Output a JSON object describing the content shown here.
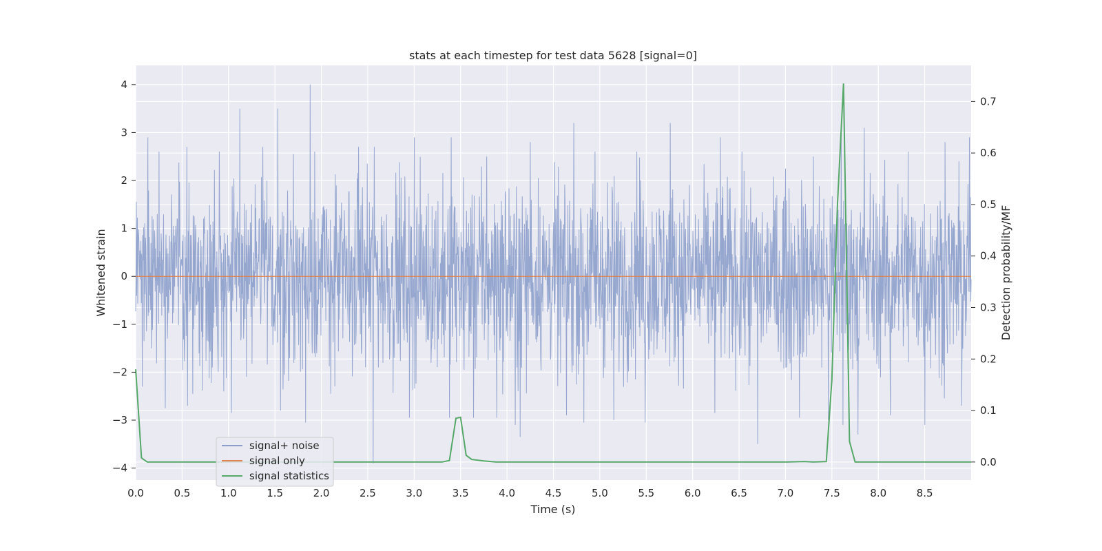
{
  "chart_data": {
    "type": "line",
    "title": "stats at each timestep for test data 5628 [signal=0]",
    "xlabel": "Time (s)",
    "ylabel": "Whitened strain",
    "ylabel_right": "Detection probability/MF",
    "xlim": [
      0,
      9.0
    ],
    "ylim": [
      -4.25,
      4.4
    ],
    "ylim_right": [
      -0.035,
      0.77
    ],
    "x_ticks": [
      "0.0",
      "0.5",
      "1.0",
      "1.5",
      "2.0",
      "2.5",
      "3.0",
      "3.5",
      "4.0",
      "4.5",
      "5.0",
      "5.5",
      "6.0",
      "6.5",
      "7.0",
      "7.5",
      "8.0",
      "8.5"
    ],
    "y_ticks": [
      "−4",
      "−3",
      "−2",
      "−1",
      "0",
      "1",
      "2",
      "3",
      "4"
    ],
    "y_ticks_right": [
      "0.0",
      "0.1",
      "0.2",
      "0.3",
      "0.4",
      "0.5",
      "0.6",
      "0.7"
    ],
    "grid": true,
    "legend_position": "lower-left",
    "colors": {
      "noise": "#8c9fcb",
      "signal": "#dd8452",
      "stats": "#55a868",
      "background": "#eaeaf2",
      "grid": "#ffffff"
    },
    "series": [
      {
        "name": "signal+ noise",
        "kind": "noise",
        "typical_range": [
          -1.6,
          1.5
        ],
        "peaks": [
          [
            0.07,
            2.55
          ],
          [
            0.13,
            2.9
          ],
          [
            0.25,
            2.6
          ],
          [
            0.55,
            2.7
          ],
          [
            0.9,
            2.6
          ],
          [
            1.12,
            3.5
          ],
          [
            1.37,
            2.7
          ],
          [
            1.53,
            3.5
          ],
          [
            1.7,
            2.55
          ],
          [
            1.83,
            2.9
          ],
          [
            1.88,
            4.0
          ],
          [
            1.93,
            2.6
          ],
          [
            2.4,
            2.7
          ],
          [
            2.57,
            2.7
          ],
          [
            3.0,
            2.9
          ],
          [
            3.4,
            2.9
          ],
          [
            3.78,
            2.5
          ],
          [
            4.25,
            2.8
          ],
          [
            4.72,
            3.2
          ],
          [
            4.95,
            2.6
          ],
          [
            5.4,
            2.6
          ],
          [
            5.76,
            3.2
          ],
          [
            6.3,
            2.9
          ],
          [
            6.53,
            2.6
          ],
          [
            7.3,
            2.5
          ],
          [
            7.6,
            3.2
          ],
          [
            7.62,
            3.0
          ],
          [
            7.85,
            3.1
          ],
          [
            8.32,
            2.6
          ],
          [
            8.72,
            2.8
          ],
          [
            8.98,
            2.9
          ]
        ],
        "troughs": [
          [
            0.07,
            -2.3
          ],
          [
            0.32,
            -2.75
          ],
          [
            0.56,
            -2.7
          ],
          [
            1.03,
            -2.85
          ],
          [
            1.56,
            -2.8
          ],
          [
            1.83,
            -3.05
          ],
          [
            2.56,
            -3.9
          ],
          [
            2.95,
            -2.95
          ],
          [
            3.38,
            -2.95
          ],
          [
            3.64,
            -2.95
          ],
          [
            3.89,
            -2.95
          ],
          [
            4.09,
            -3.1
          ],
          [
            4.14,
            -3.35
          ],
          [
            4.64,
            -2.9
          ],
          [
            4.83,
            -3.05
          ],
          [
            5.15,
            -3.0
          ],
          [
            5.49,
            -3.05
          ],
          [
            6.24,
            -2.85
          ],
          [
            6.7,
            -3.5
          ],
          [
            7.15,
            -2.95
          ],
          [
            7.46,
            -3.0
          ],
          [
            7.62,
            -3.1
          ],
          [
            7.78,
            -3.3
          ],
          [
            8.13,
            -2.9
          ],
          [
            8.5,
            -3.1
          ],
          [
            8.9,
            -2.7
          ]
        ]
      },
      {
        "name": "signal only",
        "kind": "signal",
        "x": [
          0,
          9.0
        ],
        "y": [
          0,
          0
        ]
      },
      {
        "name": "signal statistics",
        "kind": "stats",
        "axis": "right",
        "x": [
          0.0,
          0.062,
          0.125,
          0.25,
          0.5,
          1.0,
          2.0,
          3.0,
          3.3,
          3.38,
          3.45,
          3.5,
          3.56,
          3.62,
          3.75,
          3.88,
          4.0,
          5.0,
          6.0,
          7.0,
          7.2,
          7.3,
          7.44,
          7.5,
          7.56,
          7.625,
          7.69,
          7.75,
          8.0,
          9.0
        ],
        "y": [
          0.18,
          0.008,
          0.0,
          0.0,
          0.0,
          0.0,
          0.0,
          0.0,
          0.0,
          0.003,
          0.085,
          0.087,
          0.013,
          0.005,
          0.002,
          0.0,
          0.0,
          0.0,
          0.0,
          0.0,
          0.001,
          0.0,
          0.001,
          0.16,
          0.5,
          0.735,
          0.04,
          0.0,
          0.0,
          0.0
        ]
      }
    ]
  }
}
